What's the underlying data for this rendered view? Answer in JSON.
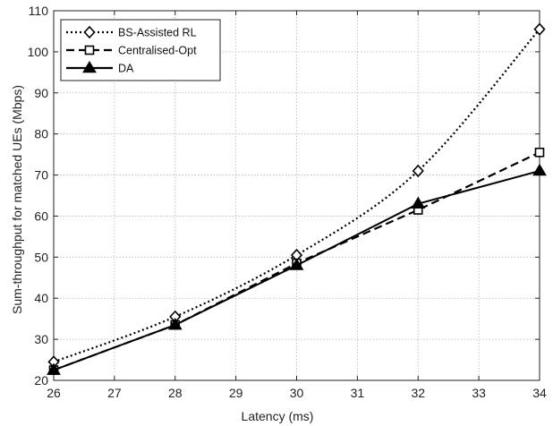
{
  "chart_data": {
    "type": "line",
    "xlabel": "Latency (ms)",
    "ylabel": "Sum-throughput for matched UEs (Mbps)",
    "xlim": [
      26,
      34
    ],
    "ylim": [
      20,
      110
    ],
    "x_ticks": [
      26,
      27,
      28,
      29,
      30,
      31,
      32,
      33,
      34
    ],
    "y_ticks": [
      20,
      30,
      40,
      50,
      60,
      70,
      80,
      90,
      100,
      110
    ],
    "grid": true,
    "legend_position": "top-left",
    "series": [
      {
        "name": "BS-Assisted RL",
        "line_style": "dotted",
        "marker": "diamond",
        "color": "#000000",
        "x": [
          26,
          28,
          30,
          32,
          34
        ],
        "y": [
          24.5,
          35.5,
          50.5,
          71,
          105.5
        ]
      },
      {
        "name": "Centralised-Opt",
        "line_style": "dashed",
        "marker": "square",
        "color": "#000000",
        "x": [
          26,
          28,
          30,
          32,
          34
        ],
        "y": [
          22.5,
          33.5,
          48.5,
          61.5,
          75.5
        ]
      },
      {
        "name": "DA",
        "line_style": "solid",
        "marker": "triangle",
        "color": "#000000",
        "x": [
          26,
          28,
          30,
          32,
          34
        ],
        "y": [
          22.5,
          33.5,
          48,
          63,
          71
        ]
      }
    ]
  }
}
